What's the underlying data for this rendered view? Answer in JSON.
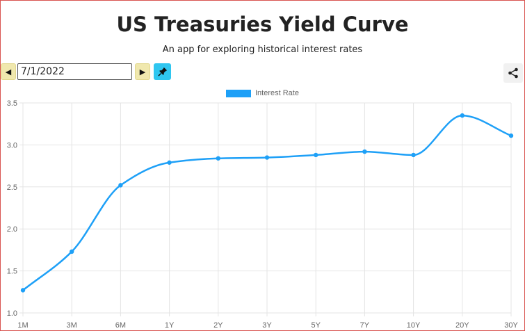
{
  "header": {
    "title": "US Treasuries Yield Curve",
    "subtitle": "An app for exploring historical interest rates"
  },
  "controls": {
    "date_value": "7/1/2022",
    "prev_icon": "caret-left-icon",
    "next_icon": "caret-right-icon",
    "pin_icon": "pin-icon",
    "share_icon": "share-icon"
  },
  "colors": {
    "line": "#1ea0f7",
    "grid": "#e4e4e4"
  },
  "chart_data": {
    "type": "line",
    "categories": [
      "1M",
      "3M",
      "6M",
      "1Y",
      "2Y",
      "3Y",
      "5Y",
      "7Y",
      "10Y",
      "20Y",
      "30Y"
    ],
    "series": [
      {
        "name": "Interest Rate",
        "values": [
          1.27,
          1.73,
          2.52,
          2.79,
          2.84,
          2.85,
          2.88,
          2.92,
          2.88,
          3.35,
          3.11
        ]
      }
    ],
    "title": "",
    "xlabel": "",
    "ylabel": "",
    "ylim": [
      1.0,
      3.5
    ],
    "yticks": [
      "1.0",
      "1.5",
      "2.0",
      "2.5",
      "3.0",
      "3.5"
    ],
    "grid": true,
    "legend_position": "top-center"
  }
}
